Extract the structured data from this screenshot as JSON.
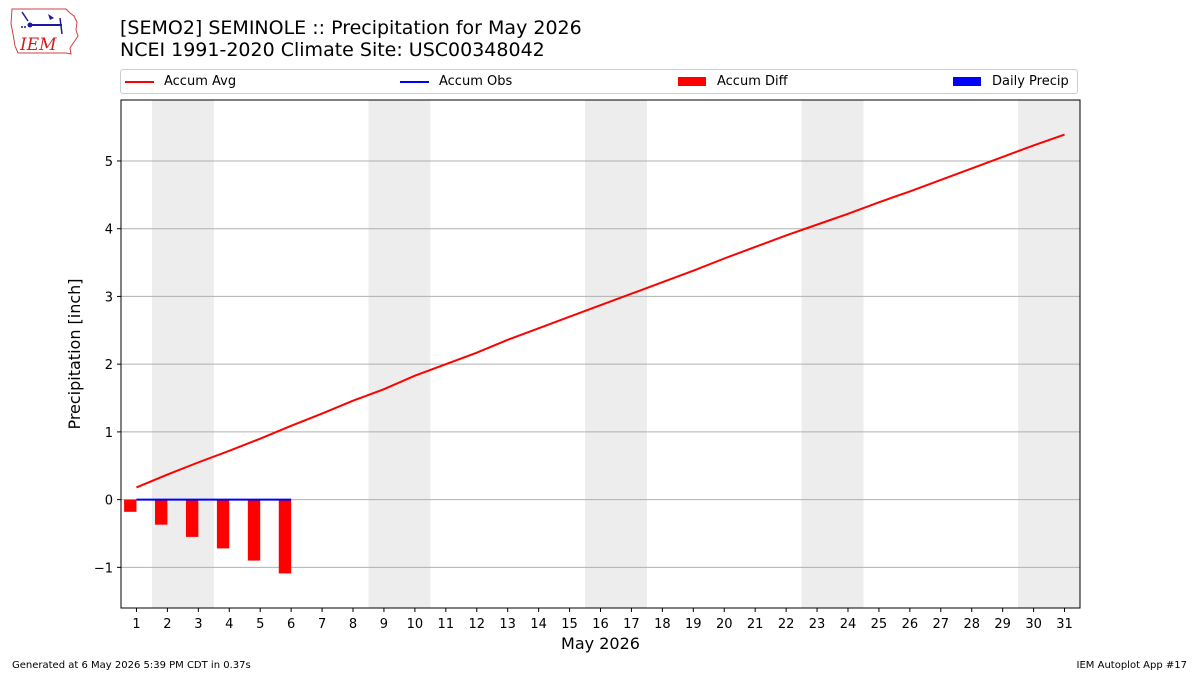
{
  "title": "[SEMO2] SEMINOLE :: Precipitation for May 2026",
  "subtitle": "NCEI 1991-2020 Climate Site: USC00348042",
  "logo_text": "IEM",
  "legend": [
    {
      "label": "Accum Avg",
      "color": "#ff0000",
      "kind": "line"
    },
    {
      "label": "Accum Obs",
      "color": "#0000ff",
      "kind": "line"
    },
    {
      "label": "Accum Diff",
      "color": "#ff0000",
      "kind": "bar"
    },
    {
      "label": "Daily Precip",
      "color": "#0000ff",
      "kind": "bar"
    }
  ],
  "footer_left": "Generated at 6 May 2026 5:39 PM CDT in 0.37s",
  "footer_right": "IEM Autoplot App #17",
  "chart_data": {
    "type": "bar",
    "xlabel": "May 2026",
    "ylabel": "Precipitation [inch]",
    "x": [
      1,
      2,
      3,
      4,
      5,
      6,
      7,
      8,
      9,
      10,
      11,
      12,
      13,
      14,
      15,
      16,
      17,
      18,
      19,
      20,
      21,
      22,
      23,
      24,
      25,
      26,
      27,
      28,
      29,
      30,
      31
    ],
    "x_ticks": [
      1,
      2,
      3,
      4,
      5,
      6,
      7,
      8,
      9,
      10,
      11,
      12,
      13,
      14,
      15,
      16,
      17,
      18,
      19,
      20,
      21,
      22,
      23,
      24,
      25,
      26,
      27,
      28,
      29,
      30,
      31
    ],
    "xlim": [
      0.5,
      31.5
    ],
    "ylim": [
      -1.6,
      5.9
    ],
    "y_ticks": [
      -1,
      0,
      1,
      2,
      3,
      4,
      5
    ],
    "y_tick_labels": [
      "−1",
      "0",
      "1",
      "2",
      "3",
      "4",
      "5"
    ],
    "grid": "horizontal",
    "legend_position": "top",
    "weekend_shading": [
      [
        2,
        3
      ],
      [
        9,
        10
      ],
      [
        16,
        17
      ],
      [
        23,
        24
      ],
      [
        30,
        31
      ]
    ],
    "shade_color": "#ededed",
    "series": [
      {
        "name": "Accum Avg",
        "type": "line",
        "color": "#ff0000",
        "x": [
          1,
          2,
          3,
          4,
          5,
          6,
          7,
          8,
          9,
          10,
          11,
          12,
          13,
          14,
          15,
          16,
          17,
          18,
          19,
          20,
          21,
          22,
          23,
          24,
          25,
          26,
          27,
          28,
          29,
          30,
          31
        ],
        "values": [
          0.18,
          0.37,
          0.55,
          0.72,
          0.9,
          1.09,
          1.27,
          1.46,
          1.63,
          1.83,
          2.0,
          2.17,
          2.36,
          2.53,
          2.7,
          2.87,
          3.04,
          3.21,
          3.38,
          3.56,
          3.73,
          3.9,
          4.06,
          4.22,
          4.39,
          4.55,
          4.72,
          4.89,
          5.06,
          5.23,
          5.39
        ]
      },
      {
        "name": "Accum Obs",
        "type": "line",
        "color": "#0000ff",
        "x": [
          1,
          2,
          3,
          4,
          5,
          6
        ],
        "values": [
          0,
          0,
          0,
          0,
          0,
          0
        ]
      },
      {
        "name": "Accum Diff",
        "type": "bar",
        "color": "#ff0000",
        "offset": -0.2,
        "x": [
          1,
          2,
          3,
          4,
          5,
          6
        ],
        "values": [
          -0.18,
          -0.37,
          -0.55,
          -0.72,
          -0.9,
          -1.09
        ]
      },
      {
        "name": "Daily Precip",
        "type": "bar",
        "color": "#0000ff",
        "offset": 0.2,
        "x": [
          1,
          2,
          3,
          4,
          5,
          6
        ],
        "values": [
          0,
          0,
          0,
          0,
          0,
          0
        ]
      }
    ]
  }
}
